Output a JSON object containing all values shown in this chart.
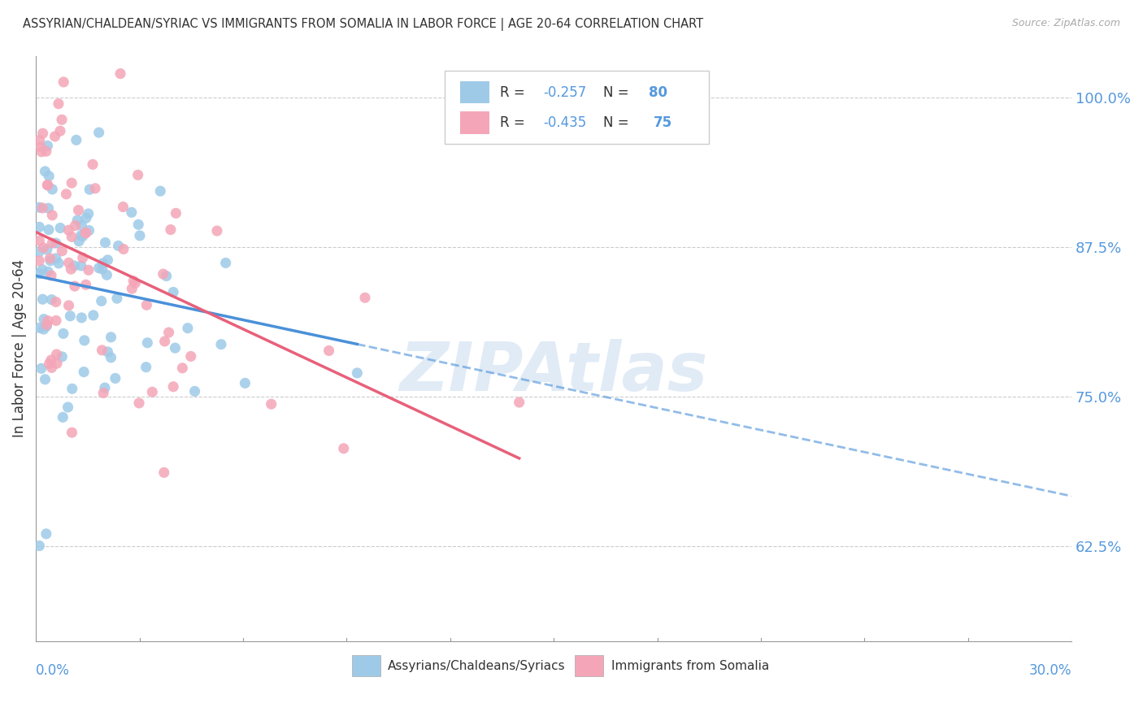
{
  "title": "ASSYRIAN/CHALDEAN/SYRIAC VS IMMIGRANTS FROM SOMALIA IN LABOR FORCE | AGE 20-64 CORRELATION CHART",
  "source": "Source: ZipAtlas.com",
  "ylabel": "In Labor Force | Age 20-64",
  "xlim": [
    0.0,
    0.3
  ],
  "ylim": [
    0.545,
    1.035
  ],
  "blue_R": -0.257,
  "blue_N": 80,
  "pink_R": -0.435,
  "pink_N": 75,
  "blue_color": "#9ECAE8",
  "pink_color": "#F4A6B8",
  "blue_line_color": "#4A90D9",
  "pink_line_color": "#E8607A",
  "legend_label_blue": "Assyrians/Chaldeans/Syriacs",
  "legend_label_pink": "Immigrants from Somalia",
  "watermark": "ZIPAtlas",
  "ytick_positions": [
    0.625,
    0.75,
    0.875,
    1.0
  ],
  "ytick_labels": [
    "62.5%",
    "75.0%",
    "87.5%",
    "100.0%"
  ],
  "right_axis_color": "#5599DD"
}
